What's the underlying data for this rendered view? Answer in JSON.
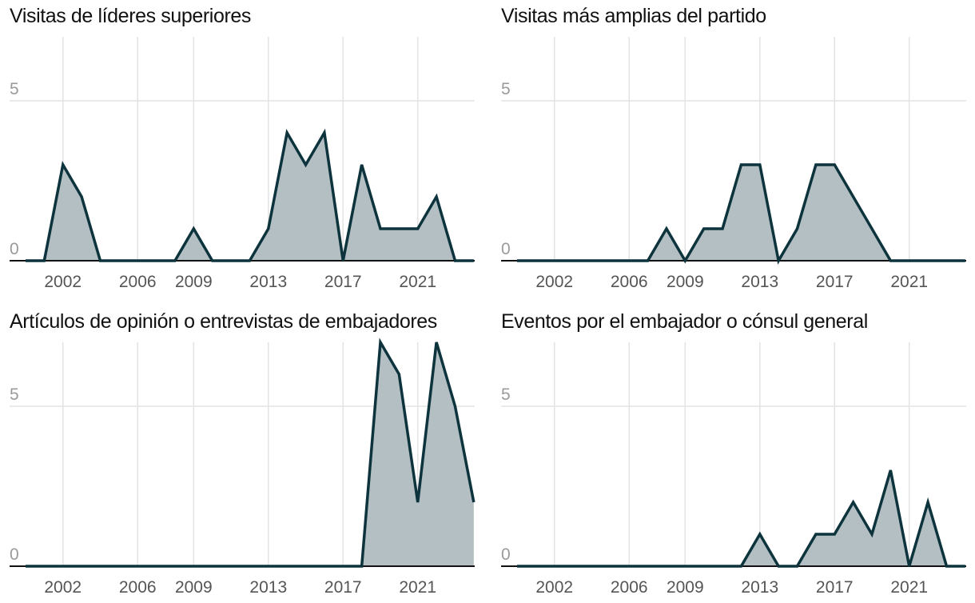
{
  "chart_data": [
    {
      "type": "area",
      "title": "Visitas de líderes superiores",
      "x": [
        2000,
        2001,
        2002,
        2003,
        2004,
        2005,
        2006,
        2007,
        2008,
        2009,
        2010,
        2011,
        2012,
        2013,
        2014,
        2015,
        2016,
        2017,
        2018,
        2019,
        2020,
        2021,
        2022,
        2023,
        2024
      ],
      "values": [
        0,
        0,
        3,
        2,
        0,
        0,
        0,
        0,
        0,
        1,
        0,
        0,
        0,
        1,
        4,
        3,
        4,
        0,
        3,
        1,
        1,
        1,
        2,
        0,
        0
      ],
      "xticks": [
        2002,
        2006,
        2009,
        2013,
        2017,
        2021
      ],
      "yticks": [
        0,
        5
      ],
      "xlim": [
        2000,
        2024
      ],
      "ylim": [
        0,
        7
      ],
      "grid": true,
      "line_color": "#0d333d",
      "fill_color": "#b3bfc3"
    },
    {
      "type": "area",
      "title": "Visitas más amplias del partido",
      "x": [
        2000,
        2001,
        2002,
        2003,
        2004,
        2005,
        2006,
        2007,
        2008,
        2009,
        2010,
        2011,
        2012,
        2013,
        2014,
        2015,
        2016,
        2017,
        2018,
        2019,
        2020,
        2021,
        2022,
        2023,
        2024
      ],
      "values": [
        0,
        0,
        0,
        0,
        0,
        0,
        0,
        0,
        1,
        0,
        1,
        1,
        3,
        3,
        0,
        1,
        3,
        3,
        2,
        1,
        0,
        0,
        0,
        0,
        0
      ],
      "xticks": [
        2002,
        2006,
        2009,
        2013,
        2017,
        2021
      ],
      "yticks": [
        0,
        5
      ],
      "xlim": [
        2000,
        2024
      ],
      "ylim": [
        0,
        7
      ],
      "grid": true,
      "line_color": "#0d333d",
      "fill_color": "#b3bfc3"
    },
    {
      "type": "area",
      "title": "Artículos de opinión o entrevistas de embajadores",
      "x": [
        2000,
        2001,
        2002,
        2003,
        2004,
        2005,
        2006,
        2007,
        2008,
        2009,
        2010,
        2011,
        2012,
        2013,
        2014,
        2015,
        2016,
        2017,
        2018,
        2019,
        2020,
        2021,
        2022,
        2023,
        2024
      ],
      "values": [
        0,
        0,
        0,
        0,
        0,
        0,
        0,
        0,
        0,
        0,
        0,
        0,
        0,
        0,
        0,
        0,
        0,
        0,
        0,
        7,
        6,
        2,
        7,
        5,
        2
      ],
      "xticks": [
        2002,
        2006,
        2009,
        2013,
        2017,
        2021
      ],
      "yticks": [
        0,
        5
      ],
      "xlim": [
        2000,
        2024
      ],
      "ylim": [
        0,
        7
      ],
      "grid": true,
      "line_color": "#0d333d",
      "fill_color": "#b3bfc3"
    },
    {
      "type": "area",
      "title": "Eventos por el embajador o cónsul general",
      "x": [
        2000,
        2001,
        2002,
        2003,
        2004,
        2005,
        2006,
        2007,
        2008,
        2009,
        2010,
        2011,
        2012,
        2013,
        2014,
        2015,
        2016,
        2017,
        2018,
        2019,
        2020,
        2021,
        2022,
        2023,
        2024
      ],
      "values": [
        0,
        0,
        0,
        0,
        0,
        0,
        0,
        0,
        0,
        0,
        0,
        0,
        0,
        1,
        0,
        0,
        1,
        1,
        2,
        1,
        3,
        0,
        2,
        0,
        0
      ],
      "xticks": [
        2002,
        2006,
        2009,
        2013,
        2017,
        2021
      ],
      "yticks": [
        0,
        5
      ],
      "xlim": [
        2000,
        2024
      ],
      "ylim": [
        0,
        7
      ],
      "grid": true,
      "line_color": "#0d333d",
      "fill_color": "#b3bfc3"
    }
  ]
}
